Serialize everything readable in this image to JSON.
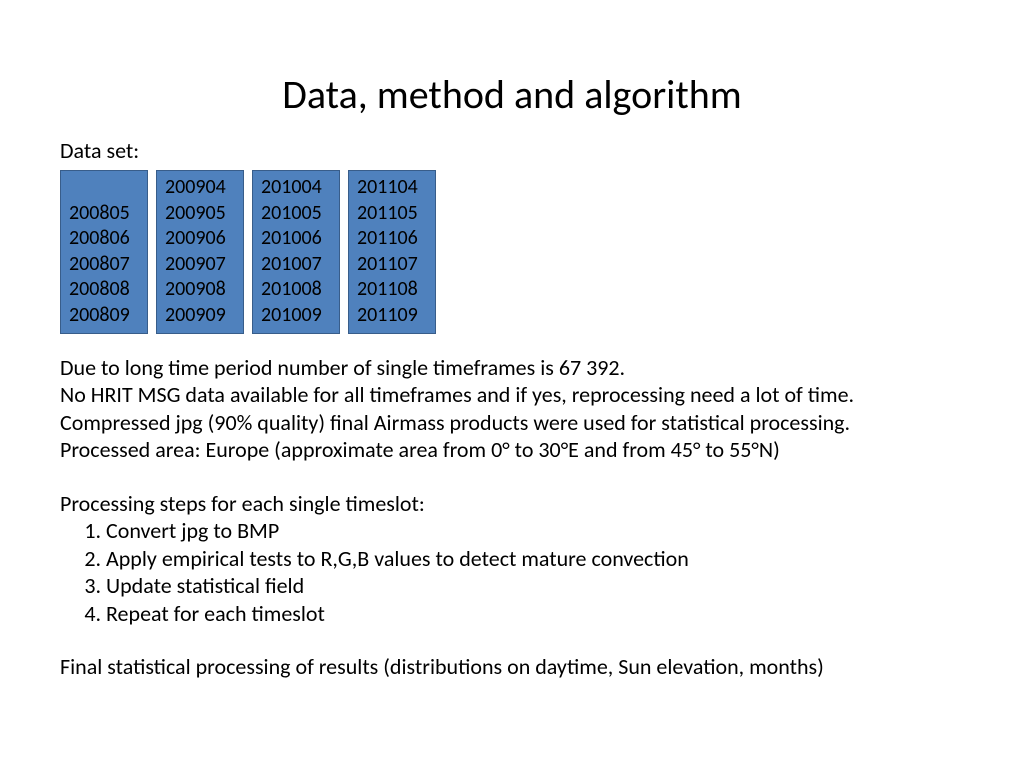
{
  "title": "Data, method and algorithm",
  "subtitle": "Data set:",
  "table": {
    "background_color": "#4f81bd",
    "border_color": "#385d8a",
    "text_color": "#000000",
    "font_size_pt": 20,
    "columns": [
      {
        "leading_blank": true,
        "cells": [
          "200805",
          "200806",
          "200807",
          "200808",
          "200809"
        ]
      },
      {
        "leading_blank": false,
        "cells": [
          "200904",
          "200905",
          "200906",
          "200907",
          "200908",
          "200909"
        ]
      },
      {
        "leading_blank": false,
        "cells": [
          "201004",
          "201005",
          "201006",
          "201007",
          "201008",
          "201009"
        ]
      },
      {
        "leading_blank": false,
        "cells": [
          "201104",
          "201105",
          "201106",
          "201107",
          "201108",
          "201109"
        ]
      }
    ]
  },
  "paragraph1": {
    "l1": "Due to long time period number of single timeframes is 67 392.",
    "l2": "No HRIT MSG data available for all timeframes and if yes, reprocessing need a lot of time.",
    "l3": "Compressed jpg (90% quality) final Airmass products were used for statistical processing.",
    "l4": "Processed area: Europe (approximate area from 0° to 30°E and from 45° to 55°N)"
  },
  "steps_label": "Processing steps for each single timeslot:",
  "steps": [
    "Convert jpg to BMP",
    "Apply empirical tests to R,G,B values to detect mature convection",
    "Update statistical field",
    "Repeat for each timeslot"
  ],
  "closing": "Final statistical processing of results (distributions on daytime, Sun elevation, months)",
  "style": {
    "title_fontsize_pt": 40,
    "body_fontsize_pt": 22,
    "background_color": "#ffffff",
    "text_color": "#000000"
  }
}
